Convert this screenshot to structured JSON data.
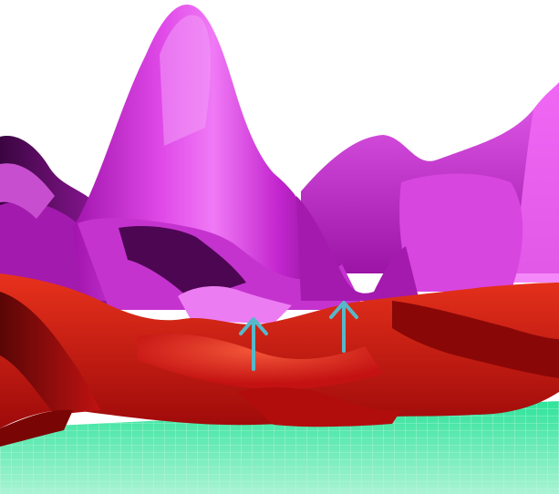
{
  "scene": {
    "colors": {
      "background": "#ffffff",
      "floor": "#3fe6a6",
      "floor_grid": "#bff5de",
      "upper_surface": "#d52ee0",
      "upper_highlight": "#f27bf7",
      "upper_shadow": "#5b0a5e",
      "lower_surface": "#cc1414",
      "lower_highlight": "#f0503a",
      "lower_shadow": "#4a0505",
      "arrow": "#57b8c9"
    },
    "arrows": [
      {
        "direction": "up"
      },
      {
        "direction": "up"
      }
    ]
  }
}
